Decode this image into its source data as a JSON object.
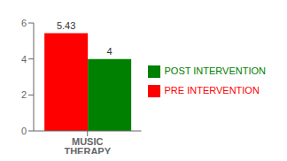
{
  "chart_data": {
    "type": "bar",
    "categories": [
      "MUSIC THERAPY"
    ],
    "series": [
      {
        "name": "PRE INTERVENTION",
        "color": "#FF0000",
        "values": [
          5.43
        ]
      },
      {
        "name": "POST INTERVENTION",
        "color": "#008000",
        "values": [
          4
        ]
      }
    ],
    "ylim": [
      0,
      6
    ],
    "yticks": [
      0,
      2,
      4,
      6
    ],
    "grid": false,
    "legend": "right",
    "data_labels": true
  }
}
